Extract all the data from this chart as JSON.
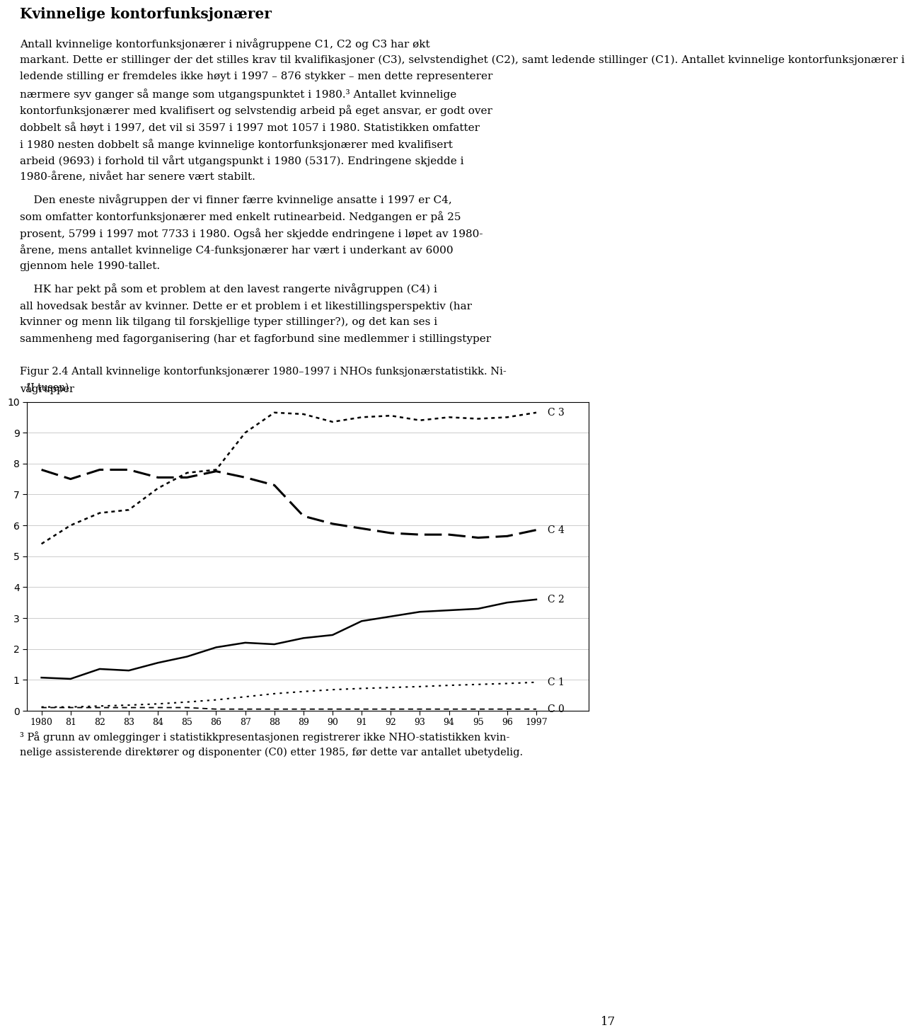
{
  "title_bold": "Kvinnelige kontorfunksjonærer",
  "para1_lines": [
    "Antall kvinnelige kontorfunksjonærer i nivågruppene C1, C2 og C3 har økt",
    "markant. Dette er stillinger der det stilles krav til kvalifikasjoner (C3), selvstendighet (C2), samt ledende stillinger (C1). Antallet kvinnelige kontorfunksjonærer i",
    "ledende stilling er fremdeles ikke høyt i 1997 – 876 stykker – men dette representerer",
    "nærmere syv ganger så mange som utgangspunktet i 1980.³ Antallet kvinnelige",
    "kontorfunksjonærer med kvalifisert og selvstendig arbeid på eget ansvar, er godt over",
    "dobbelt så høyt i 1997, det vil si 3597 i 1997 mot 1057 i 1980. Statistikken omfatter",
    "i 1980 nesten dobbelt så mange kvinnelige kontorfunksjonærer med kvalifisert",
    "arbeid (9693) i forhold til vårt utgangspunkt i 1980 (5317). Endringene skjedde i",
    "1980-årene, nivået har senere vært stabilt."
  ],
  "para2_lines": [
    "    Den eneste nivågruppen der vi finner færre kvinnelige ansatte i 1997 er C4,",
    "som omfatter kontorfunksjonærer med enkelt rutinearbeid. Nedgangen er på 25",
    "prosent, 5799 i 1997 mot 7733 i 1980. Også her skjedde endringene i løpet av 1980-",
    "årene, mens antallet kvinnelige C4-funksjonærer har vært i underkant av 6000",
    "gjennom hele 1990-tallet."
  ],
  "para3_lines": [
    "    HK har pekt på som et problem at den lavest rangerte nivågruppen (C4) i",
    "all hovedsak består av kvinner. Dette er et problem i et likestillingsperspektiv (har",
    "kvinner og menn lik tilgang til forskjellige typer stillinger?), og det kan ses i",
    "sammenheng med fagorganisering (har et fagforbund sine medlemmer i stillingstyper"
  ],
  "figure_caption_line1": "Figur 2.4 Antall kvinnelige kontorfunksjonærer 1980–1997 i NHOs funksjonærstatistikk. Ni-",
  "figure_caption_line2": "vågrupper",
  "ylabel": "(I tusen)",
  "years": [
    1980,
    1981,
    1982,
    1983,
    1984,
    1985,
    1986,
    1987,
    1988,
    1989,
    1990,
    1991,
    1992,
    1993,
    1994,
    1995,
    1996,
    1997
  ],
  "C0": [
    0.1,
    0.1,
    0.1,
    0.1,
    0.1,
    0.1,
    0.05,
    0.05,
    0.05,
    0.05,
    0.05,
    0.05,
    0.05,
    0.05,
    0.05,
    0.05,
    0.05,
    0.05
  ],
  "C1": [
    0.12,
    0.12,
    0.15,
    0.18,
    0.22,
    0.28,
    0.35,
    0.45,
    0.55,
    0.62,
    0.68,
    0.72,
    0.75,
    0.78,
    0.82,
    0.85,
    0.88,
    0.92
  ],
  "C2": [
    1.07,
    1.03,
    1.35,
    1.3,
    1.55,
    1.75,
    2.05,
    2.2,
    2.15,
    2.35,
    2.45,
    2.9,
    3.05,
    3.2,
    3.25,
    3.3,
    3.5,
    3.6
  ],
  "C3": [
    5.4,
    6.0,
    6.4,
    6.5,
    7.2,
    7.7,
    7.8,
    9.0,
    9.65,
    9.6,
    9.35,
    9.5,
    9.55,
    9.4,
    9.5,
    9.45,
    9.5,
    9.65
  ],
  "C4": [
    7.8,
    7.5,
    7.8,
    7.8,
    7.55,
    7.55,
    7.75,
    7.55,
    7.3,
    6.3,
    6.05,
    5.9,
    5.75,
    5.7,
    5.7,
    5.6,
    5.65,
    5.85
  ],
  "footnote_line1": "³ På grunn av omlegginger i statistikkpresentasjonen registrerer ikke NHO-statistikken kvin-",
  "footnote_line2": "nelige assisterende direktører og disponenter (C0) etter 1985, før dette var antallet ubetydelig.",
  "page_number": "17",
  "ylim": [
    0,
    10
  ],
  "yticks": [
    0,
    1,
    2,
    3,
    4,
    5,
    6,
    7,
    8,
    9,
    10
  ],
  "tick_labels": [
    "1980",
    "81",
    "82",
    "83",
    "84",
    "85",
    "86",
    "87",
    "88",
    "89",
    "90",
    "91",
    "92",
    "93",
    "94",
    "95",
    "96",
    "1997"
  ],
  "bg_color": "#ffffff",
  "text_color": "#000000",
  "body_fontsize": 11.0,
  "title_fontsize": 14.5,
  "caption_fontsize": 10.5,
  "footnote_fontsize": 10.5,
  "linespacing": 1.55
}
